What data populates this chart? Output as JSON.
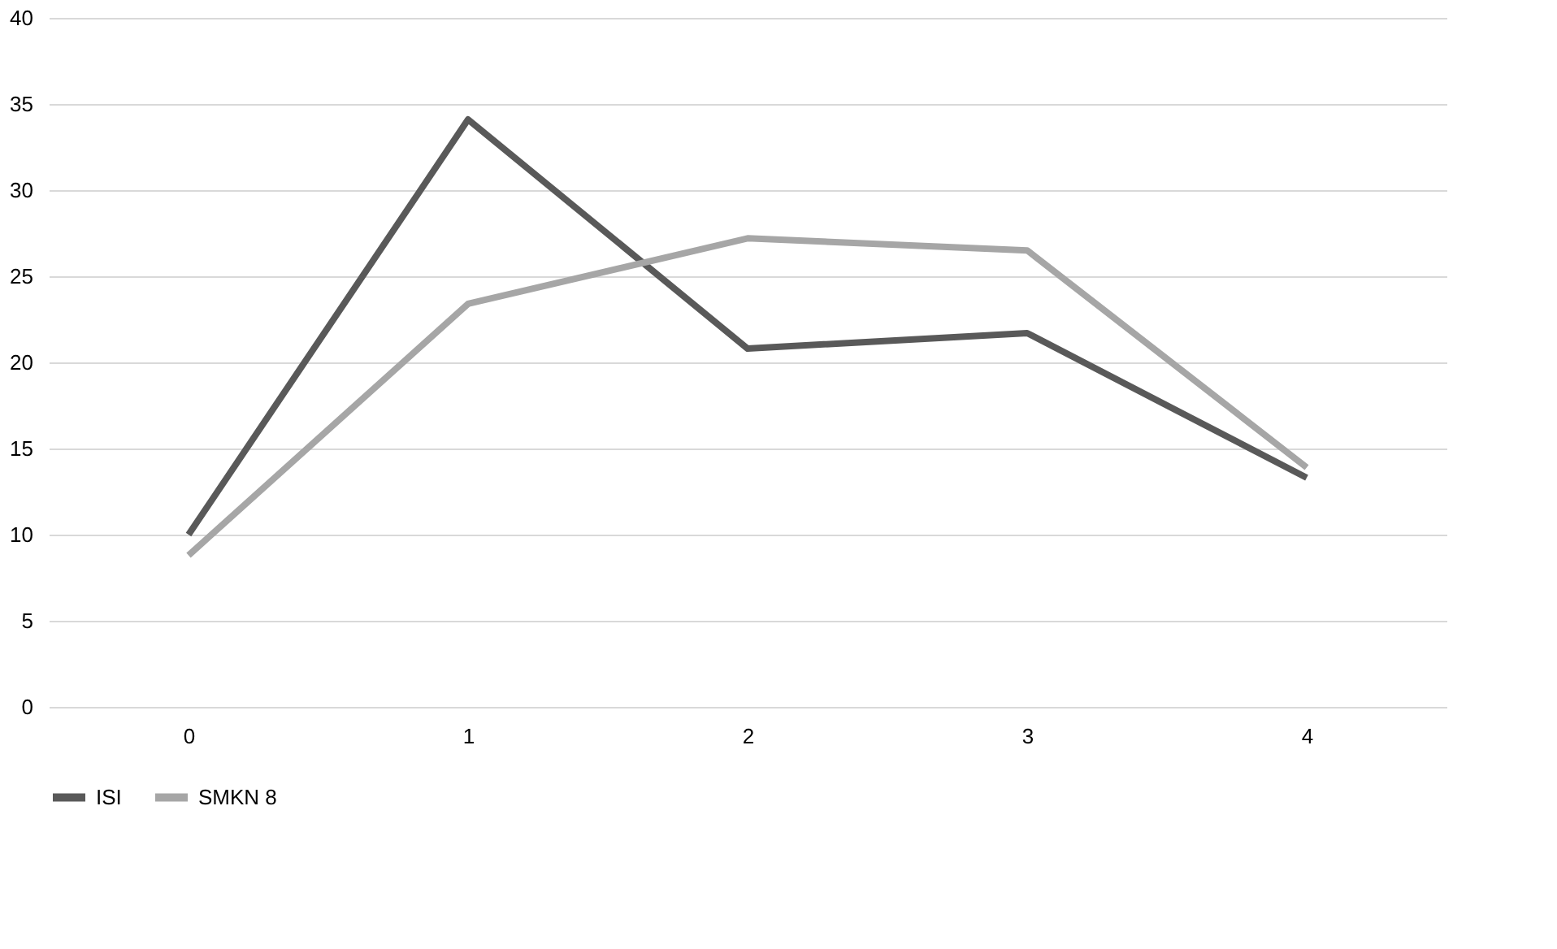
{
  "chart_data": {
    "type": "line",
    "categories": [
      "0",
      "1",
      "2",
      "3",
      "4"
    ],
    "series": [
      {
        "name": "ISI",
        "color": "#595959",
        "values": [
          10.0,
          34.1,
          20.8,
          21.7,
          13.3
        ]
      },
      {
        "name": "SMKN 8",
        "color": "#a6a6a6",
        "values": [
          8.8,
          23.4,
          27.2,
          26.5,
          13.9
        ]
      }
    ],
    "ylim": [
      0,
      40
    ],
    "yticks": [
      0,
      5,
      10,
      15,
      20,
      25,
      30,
      35,
      40
    ],
    "grid": "y",
    "legend": "bottom",
    "marker": "none",
    "line_style": "solid"
  }
}
